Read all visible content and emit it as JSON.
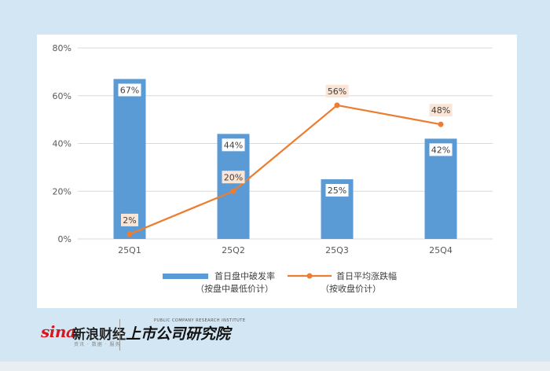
{
  "chart_data": {
    "type": "bar+line",
    "categories": [
      "25Q1",
      "25Q2",
      "25Q3",
      "25Q4"
    ],
    "ylim": [
      0,
      80
    ],
    "yticks": [
      0,
      20,
      40,
      60,
      80
    ],
    "ytick_labels": [
      "0%",
      "20%",
      "40%",
      "60%",
      "80%"
    ],
    "grid": true,
    "legend_position": "bottom",
    "series": [
      {
        "name": "首日盘中破发率",
        "name_note": "（按盘中最低价计）",
        "type": "bar",
        "color": "#5b9bd5",
        "values": [
          67,
          44,
          25,
          42
        ],
        "labels": [
          "67%",
          "44%",
          "25%",
          "42%"
        ]
      },
      {
        "name": "首日平均涨跌幅",
        "name_note": "（按收盘价计）",
        "type": "line",
        "color": "#ed7d31",
        "values": [
          2,
          20,
          56,
          48
        ],
        "labels": [
          "2%",
          "20%",
          "56%",
          "48%"
        ]
      }
    ]
  },
  "footer": {
    "sina_logo": "sina",
    "sina_name": "新浪财经",
    "sina_sub": "资讯 · 数据 · 服务",
    "institute_en": "PUBLIC COMPANY RESEARCH INSTITUTE",
    "institute_name": "上市公司研究院"
  }
}
